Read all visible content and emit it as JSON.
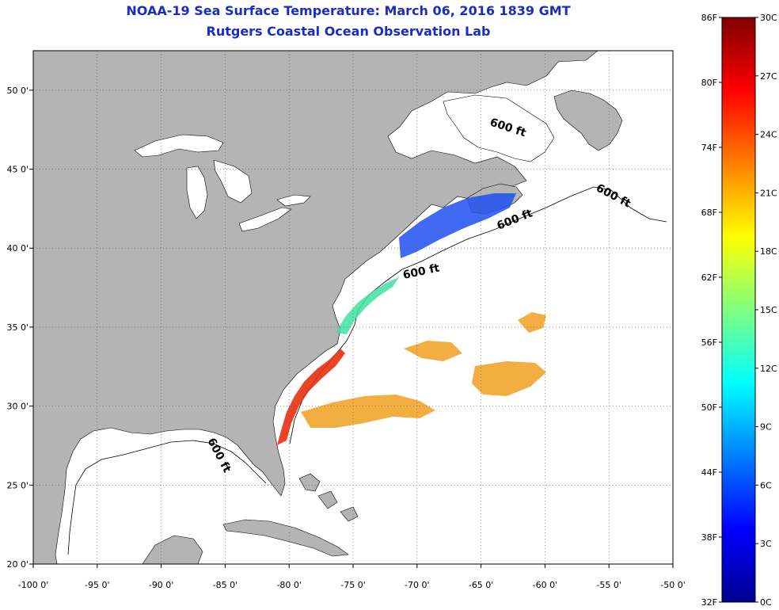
{
  "title": {
    "line1": "NOAA-19 Sea Surface Temperature:  March 06, 2016 1839 GMT",
    "line2": "Rutgers Coastal Ocean Observation Lab"
  },
  "map": {
    "lon_range": [
      -100,
      -50
    ],
    "lat_range": [
      20,
      52.5
    ],
    "lon_ticks": [
      {
        "value": -100,
        "label": "-100 0'"
      },
      {
        "value": -95,
        "label": "-95 0'"
      },
      {
        "value": -90,
        "label": "-90 0'"
      },
      {
        "value": -85,
        "label": "-85 0'"
      },
      {
        "value": -80,
        "label": "-80 0'"
      },
      {
        "value": -75,
        "label": "-75 0'"
      },
      {
        "value": -70,
        "label": "-70 0'"
      },
      {
        "value": -65,
        "label": "-65 0'"
      },
      {
        "value": -60,
        "label": "-60 0'"
      },
      {
        "value": -55,
        "label": "-55 0'"
      },
      {
        "value": -50,
        "label": "-50 0'"
      }
    ],
    "lat_ticks": [
      {
        "value": 20,
        "label": "20 0'"
      },
      {
        "value": 25,
        "label": "25 0'"
      },
      {
        "value": 30,
        "label": "30 0'"
      },
      {
        "value": 35,
        "label": "35 0'"
      },
      {
        "value": 40,
        "label": "40 0'"
      },
      {
        "value": 45,
        "label": "45 0'"
      },
      {
        "value": 50,
        "label": "50 0'"
      }
    ],
    "contour_label": "600 ft",
    "land_color": "#b4b4b4",
    "grid": "dotted"
  },
  "colorbar": {
    "colors": [
      "#00008f",
      "#0000ff",
      "#007fff",
      "#00ffff",
      "#7fff7f",
      "#ffff00",
      "#ff7f00",
      "#ff0000",
      "#7f0000"
    ],
    "fahrenheit": [
      "32F",
      "38F",
      "44F",
      "50F",
      "56F",
      "62F",
      "68F",
      "74F",
      "80F",
      "86F"
    ],
    "celsius": [
      "0C",
      "3C",
      "6C",
      "9C",
      "12C",
      "15C",
      "18C",
      "21C",
      "24C",
      "27C",
      "30C"
    ]
  }
}
